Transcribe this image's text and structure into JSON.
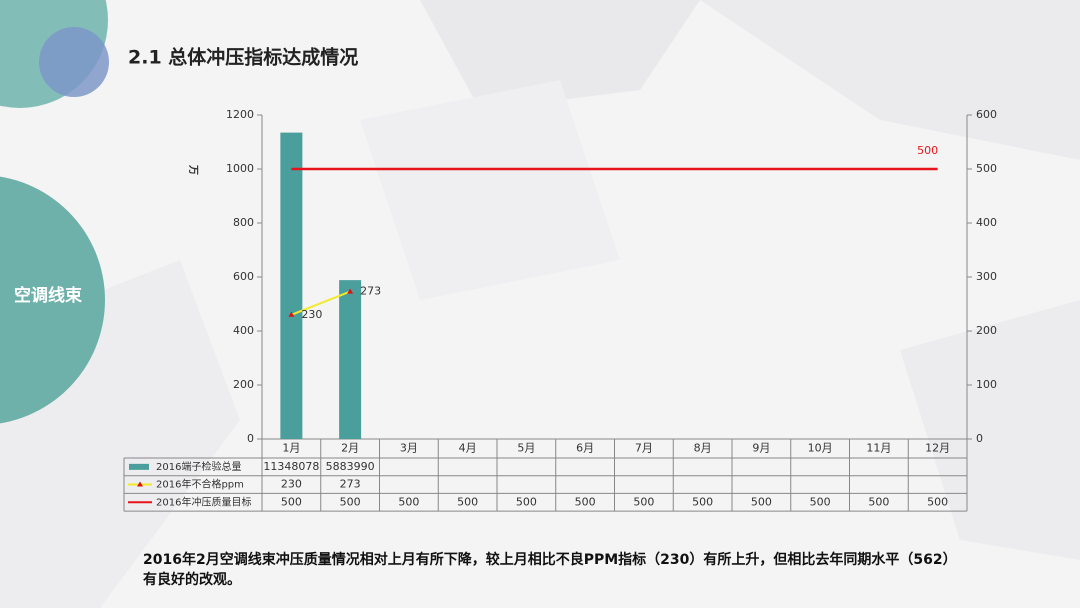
{
  "title": "2.1 总体冲压指标达成情况",
  "side_label": "空调线束",
  "footer": "2016年2月空调线束冲压质量情况相对上月有所下降，较上月相比不良PPM指标（230）有所上升，但相比去年同期水平（562）有良好的改观。",
  "chart_data": {
    "type": "bar",
    "ylabel": "万",
    "categories": [
      "1月",
      "2月",
      "3月",
      "4月",
      "5月",
      "6月",
      "7月",
      "8月",
      "9月",
      "10月",
      "11月",
      "12月"
    ],
    "ylim": [
      0,
      1200
    ],
    "yticks": [
      0,
      200,
      400,
      600,
      800,
      1000,
      1200
    ],
    "y2lim": [
      0,
      600
    ],
    "y2ticks": [
      0,
      100,
      200,
      300,
      400,
      500,
      600
    ],
    "series": [
      {
        "name": "2016端子检验总量",
        "type": "bar",
        "color": "#4a9e9b",
        "values": [
          1134.8078,
          588.399,
          null,
          null,
          null,
          null,
          null,
          null,
          null,
          null,
          null,
          null
        ],
        "value_labels": [
          "11348078",
          "5883990",
          null,
          null,
          null,
          null,
          null,
          null,
          null,
          null,
          null,
          null
        ]
      },
      {
        "name": "2016年不合格ppm",
        "type": "line",
        "axis": "y2",
        "color": "#f2ea2a",
        "marker_color": "#d9141b",
        "values": [
          230,
          273,
          null,
          null,
          null,
          null,
          null,
          null,
          null,
          null,
          null,
          null
        ]
      },
      {
        "name": "2016年冲压质量目标",
        "type": "line",
        "axis": "y2",
        "color": "#e8141b",
        "values": [
          500,
          500,
          500,
          500,
          500,
          500,
          500,
          500,
          500,
          500,
          500,
          500
        ]
      }
    ]
  }
}
